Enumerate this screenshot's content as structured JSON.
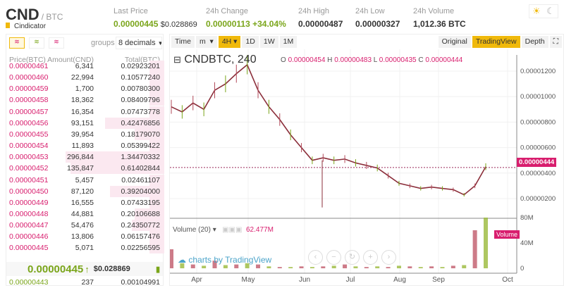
{
  "header": {
    "symbol": "CND",
    "quote": "/ BTC",
    "name": "Cindicator",
    "stats": [
      {
        "label": "Last Price",
        "value": "0.00000445",
        "extra": "$0.028869"
      },
      {
        "label": "24h Change",
        "value": "0.00000113",
        "extra": "+34.04%"
      },
      {
        "label": "24h High",
        "value": "0.00000487"
      },
      {
        "label": "24h Low",
        "value": "0.00000327"
      },
      {
        "label": "24h Volume",
        "value": "1,012.36 BTC"
      }
    ],
    "theme_icons": [
      "sun-icon",
      "moon-icon"
    ]
  },
  "orderbook": {
    "groups_label": "groups",
    "decimals": "8 decimals",
    "columns": [
      "Price(BTC)",
      "Amount(CND)",
      "Total(BTC)"
    ],
    "asks": [
      [
        "0.00000461",
        "6,341",
        "0.02923201",
        0.02
      ],
      [
        "0.00000460",
        "22,994",
        "0.10577240",
        0.08
      ],
      [
        "0.00000459",
        "1,700",
        "0.00780300",
        0.01
      ],
      [
        "0.00000458",
        "18,362",
        "0.08409796",
        0.07
      ],
      [
        "0.00000457",
        "16,354",
        "0.07473778",
        0.06
      ],
      [
        "0.00000456",
        "93,151",
        "0.42476856",
        0.6
      ],
      [
        "0.00000455",
        "39,954",
        "0.18179070",
        0.3
      ],
      [
        "0.00000454",
        "11,893",
        "0.05399422",
        0.05
      ],
      [
        "0.00000453",
        "296,844",
        "1.34470332",
        1
      ],
      [
        "0.00000452",
        "135,847",
        "0.61402844",
        0.95
      ],
      [
        "0.00000451",
        "5,457",
        "0.02461107",
        0.02
      ],
      [
        "0.00000450",
        "87,120",
        "0.39204000",
        0.55
      ],
      [
        "0.00000449",
        "16,555",
        "0.07433195",
        0.05
      ],
      [
        "0.00000448",
        "44,881",
        "0.20106688",
        0.3
      ],
      [
        "0.00000447",
        "54,476",
        "0.24350772",
        0.33
      ],
      [
        "0.00000446",
        "13,806",
        "0.06157476",
        0.05
      ],
      [
        "0.00000445",
        "5,071",
        "0.02256595",
        0.02
      ]
    ],
    "last_price": "0.00000445",
    "last_usd": "$0.028869",
    "bids": [
      [
        "0.00000443",
        "237",
        "0.00104991"
      ]
    ]
  },
  "chart": {
    "toolbar": [
      "Time",
      "m",
      "4H",
      "1D",
      "1W",
      "1M"
    ],
    "active_interval": "4H",
    "views": [
      "Original",
      "TradingView",
      "Depth"
    ],
    "active_view": "TradingView",
    "symbol_title": "CNDBTC, 240",
    "ohlc": {
      "O": "0.00000454",
      "H": "0.00000483",
      "L": "0.00000435",
      "C": "0.00000444"
    },
    "current_price_label": "0.00000444",
    "volume_title": "Volume (20)",
    "volume_value": "62.477M",
    "volume_badge": "Volume",
    "watermark": "charts by TradingView",
    "accent": "#f0b90b",
    "pink": "#d81e6e"
  },
  "chart_data": {
    "type": "line",
    "x": [
      "Mar 18",
      "Mar 25",
      "Apr 1",
      "Apr 8",
      "Apr 15",
      "Apr 22",
      "Apr 29",
      "May 3",
      "May 10",
      "May 17",
      "May 24",
      "May 31",
      "Jun 7",
      "Jun 10",
      "Jun 14",
      "Jun 21",
      "Jun 28",
      "Jul 5",
      "Jul 12",
      "Jul 19",
      "Jul 26",
      "Aug 2",
      "Aug 9",
      "Aug 16",
      "Aug 23",
      "Aug 30",
      "Sep 6",
      "Sep 12",
      "Sep 15",
      "Sep 17"
    ],
    "y": [
      9.2e-06,
      8.8e-06,
      9.5e-06,
      9e-06,
      1.05e-05,
      1.1e-05,
      1.18e-05,
      1.25e-05,
      1.05e-05,
      9.2e-06,
      8.2e-06,
      7e-06,
      6e-06,
      5e-06,
      5.2e-06,
      5e-06,
      5.1e-06,
      4.8e-06,
      4.6e-06,
      4.4e-06,
      3.8e-06,
      3.2e-06,
      3e-06,
      2.8e-06,
      2.9e-06,
      2.8e-06,
      2.7e-06,
      2.3e-06,
      3e-06,
      4.5e-06
    ],
    "ylim": [
      0.0,
      1.3e-05
    ],
    "yticks": [
      "0.00000200",
      "0.00000400",
      "0.00000600",
      "0.00000800",
      "0.00001000",
      "0.00001200"
    ],
    "xticks": [
      "Apr",
      "May",
      "Jun",
      "Jul",
      "Aug",
      "Sep",
      "Oct"
    ],
    "volume": {
      "yticks": [
        "0",
        "40M",
        "80M"
      ],
      "ylim": [
        0,
        80
      ],
      "values": [
        30,
        8,
        6,
        4,
        12,
        5,
        6,
        8,
        6,
        3,
        2,
        2,
        3,
        2,
        3,
        4,
        6,
        3,
        2,
        3,
        2,
        4,
        3,
        2,
        3,
        2,
        4,
        5,
        60,
        80
      ]
    }
  }
}
